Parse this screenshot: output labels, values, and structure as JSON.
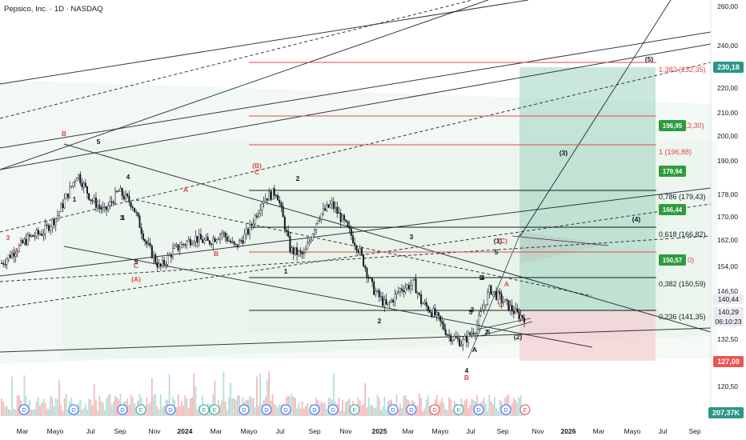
{
  "header": {
    "title": "Pepsico, Inc. · 1D · NASDAQ"
  },
  "colors": {
    "up": "#26a69a",
    "down": "#ef5350",
    "accent": "#2962ff",
    "green_tag": "#2e9b3f",
    "line": "#131722"
  },
  "chart_data": {
    "type": "candlestick",
    "x_ticks": [
      "Mar",
      "Mayo",
      "Jul",
      "Sep",
      "Nov",
      "2024",
      "Mar",
      "Mayo",
      "Jul",
      "Sep",
      "Nov",
      "2025",
      "Mar",
      "Mayo",
      "Jul",
      "Sep",
      "Nov",
      "2026",
      "Mar",
      "Mayo",
      "Jul",
      "Sep"
    ],
    "y_ticks": [
      "260,00",
      "240,00",
      "230,18",
      "220,00",
      "210,00",
      "200,00",
      "190,00",
      "178,00",
      "170,00",
      "162,00",
      "154,00",
      "146,50",
      "140,44",
      "140,29",
      "132,50",
      "127,09",
      "120,50"
    ],
    "y_range_note": "price axis",
    "price_path": [
      [
        0,
        160
      ],
      [
        0.02,
        165
      ],
      [
        0.04,
        170
      ],
      [
        0.06,
        172
      ],
      [
        0.08,
        178
      ],
      [
        0.1,
        189
      ],
      [
        0.11,
        195
      ],
      [
        0.13,
        185
      ],
      [
        0.15,
        180
      ],
      [
        0.17,
        188
      ],
      [
        0.19,
        183
      ],
      [
        0.21,
        168
      ],
      [
        0.23,
        158
      ],
      [
        0.25,
        165
      ],
      [
        0.28,
        170
      ],
      [
        0.3,
        168
      ],
      [
        0.32,
        172
      ],
      [
        0.34,
        166
      ],
      [
        0.36,
        173
      ],
      [
        0.38,
        185
      ],
      [
        0.4,
        188
      ],
      [
        0.42,
        165
      ],
      [
        0.44,
        163
      ],
      [
        0.46,
        178
      ],
      [
        0.48,
        183
      ],
      [
        0.5,
        175
      ],
      [
        0.52,
        165
      ],
      [
        0.54,
        150
      ],
      [
        0.56,
        143
      ],
      [
        0.58,
        150
      ],
      [
        0.6,
        152
      ],
      [
        0.61,
        145
      ],
      [
        0.63,
        140
      ],
      [
        0.65,
        132
      ],
      [
        0.67,
        129
      ],
      [
        0.69,
        135
      ],
      [
        0.71,
        150
      ],
      [
        0.73,
        145
      ],
      [
        0.75,
        140
      ],
      [
        0.76,
        139
      ]
    ],
    "labels": {
      "fibs": [
        "1,382 (232,35)",
        "1 (196,88)",
        "0,786 (179,43)",
        "0,618 (166,82)",
        "0,382 (150,59)",
        "0,236 (141,35)"
      ],
      "fib_partial": [
        "(213,30)",
        "0 (15",
        "0)"
      ],
      "green_tags": [
        "196,95",
        "179,94",
        "166,44",
        "150,57"
      ],
      "waves": [
        "(5)",
        "(3)",
        "(4)",
        "(1)",
        "(2)",
        "B",
        "C",
        "(B)",
        "C",
        "(A)",
        "A",
        "B",
        "5",
        "1",
        "2",
        "3",
        "4",
        "5",
        "1",
        "2",
        "3",
        "4",
        "5",
        "A",
        "B",
        "C",
        "(C)",
        "A",
        "B",
        "3",
        "4",
        "1",
        "2",
        "3",
        "4",
        "5",
        "5"
      ],
      "volume": "207,37K",
      "last_price": "140,29",
      "countdown": "06:10:23",
      "prev_close": "140,44",
      "target": "230,18",
      "stop": "127,09"
    }
  }
}
